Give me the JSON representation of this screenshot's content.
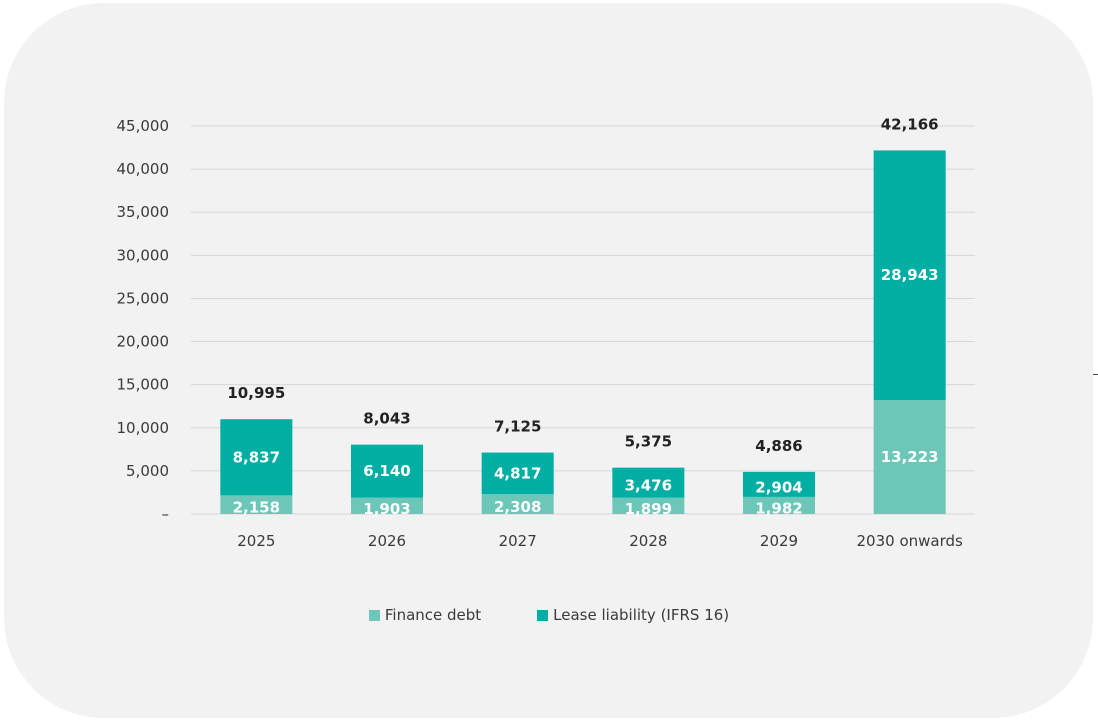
{
  "chart_data": {
    "type": "bar",
    "stacked": true,
    "categories": [
      "2025",
      "2026",
      "2027",
      "2028",
      "2029",
      "2030 onwards"
    ],
    "series": [
      {
        "name": "Finance debt",
        "values": [
          2158,
          1903,
          2308,
          1899,
          1982,
          13223
        ],
        "labels": [
          "2,158",
          "1,903",
          "2,308",
          "1,899",
          "1,982",
          "13,223"
        ],
        "color": "#6cc7b8"
      },
      {
        "name": "Lease liability (IFRS 16)",
        "values": [
          8837,
          6140,
          4817,
          3476,
          2904,
          28943
        ],
        "labels": [
          "8,837",
          "6,140",
          "4,817",
          "3,476",
          "2,904",
          "28,943"
        ],
        "color": "#00aea3"
      }
    ],
    "totals": [
      10995,
      8043,
      7125,
      5375,
      4886,
      42166
    ],
    "total_labels": [
      "10,995",
      "8,043",
      "7,125",
      "5,375",
      "4,886",
      "42,166"
    ],
    "y_ticks": [
      {
        "value": 0,
        "label": "–"
      },
      {
        "value": 5000,
        "label": "5,000"
      },
      {
        "value": 10000,
        "label": "10,000"
      },
      {
        "value": 15000,
        "label": "15,000"
      },
      {
        "value": 20000,
        "label": "20,000"
      },
      {
        "value": 25000,
        "label": "25,000"
      },
      {
        "value": 30000,
        "label": "30,000"
      },
      {
        "value": 35000,
        "label": "35,000"
      },
      {
        "value": 40000,
        "label": "40,000"
      },
      {
        "value": 45000,
        "label": "45,000"
      }
    ],
    "ylim": [
      0,
      45000
    ],
    "grid": true,
    "legend_position": "bottom-center",
    "gridline_color": "#d6d6d6",
    "background_color": "#f2f2f2"
  }
}
